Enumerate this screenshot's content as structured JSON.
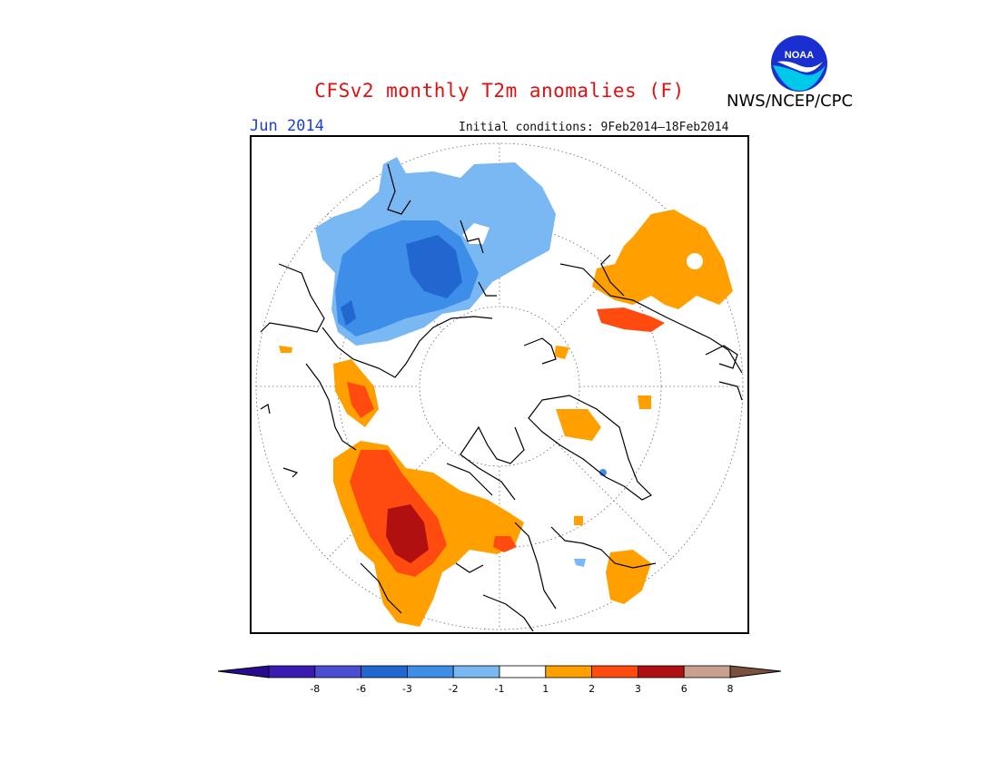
{
  "header": {
    "title": "CFSv2 monthly T2m anomalies (F)",
    "valid_month": "Jun 2014",
    "initial_conditions": "Initial conditions: 9Feb2014–18Feb2014",
    "agency": "NWS/NCEP/CPC",
    "logo_text": "NOAA"
  },
  "map": {
    "projection": "north-polar-stereographic",
    "graticule": "dotted",
    "features": [
      "coastlines",
      "anomaly-shading"
    ]
  },
  "legend": {
    "bins": [
      {
        "label": "-8",
        "color": "#3a1ab0"
      },
      {
        "label": "-6",
        "color": "#4a4ed0"
      },
      {
        "label": "-3",
        "color": "#2266d0"
      },
      {
        "label": "-2",
        "color": "#3d8ee8"
      },
      {
        "label": "-1",
        "color": "#7ab8f4"
      },
      {
        "label": "1",
        "color": "#ffffff"
      },
      {
        "label": "2",
        "color": "#ffa000"
      },
      {
        "label": "3",
        "color": "#ff4a10"
      },
      {
        "label": "6",
        "color": "#b01010"
      },
      {
        "label": "8",
        "color": "#c8a090"
      }
    ],
    "low_extension_color": "#2a0a90",
    "high_extension_color": "#7a5040"
  }
}
